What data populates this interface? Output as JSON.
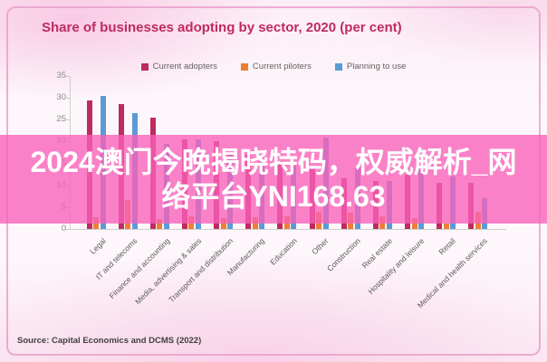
{
  "title": "Share of businesses adopting by sector, 2020 (per cent)",
  "source": "Source: Capital Economics and DCMS (2022)",
  "overlay": {
    "line1": "2024澳门今晚揭晓特码，权威解析_网",
    "line2": "络平台YNI168.63",
    "full_text": "2024澳门今晚揭晓特码，权威解析_网络平台YNI168.63",
    "band_color": "#f960b8",
    "text_color": "#ffffff"
  },
  "colors": {
    "title": "#bf2a5f",
    "adopters": "#bf2a5f",
    "piloters": "#ee7e32",
    "planning": "#5b9bd5",
    "axis": "#cfcfcf",
    "tick_label": "#8a8a8a"
  },
  "chart_data": {
    "type": "bar",
    "title": "Share of businesses adopting by sector, 2020 (per cent)",
    "xlabel": "",
    "ylabel": "",
    "ylim": [
      0,
      35
    ],
    "yticks": [
      0,
      5,
      10,
      15,
      20,
      25,
      30,
      35
    ],
    "grid": false,
    "legend_position": "top",
    "categories": [
      "Legal",
      "IT and telecoms",
      "Finance and accounting",
      "Media, advertising & sales",
      "Transport and distribution",
      "Manufacturing",
      "Education",
      "Other",
      "Construction",
      "Real estate",
      "Hospitality and leisure",
      "Retail",
      "Medical and health services"
    ],
    "series": [
      {
        "name": "Current adopters",
        "color": "#bf2a5f",
        "values": [
          29.5,
          28.5,
          25.5,
          20.5,
          20,
          17,
          15.5,
          14.5,
          11.5,
          11,
          12.5,
          10.5,
          10.5
        ]
      },
      {
        "name": "Current piloters",
        "color": "#ee7e32",
        "values": [
          2.7,
          6.6,
          2.3,
          3,
          2.5,
          2.7,
          3,
          4,
          3.7,
          2.9,
          2.5,
          1.3,
          4
        ]
      },
      {
        "name": "Planning to use",
        "color": "#5b9bd5",
        "values": [
          30.5,
          26.5,
          19.5,
          20.5,
          17.5,
          15.5,
          14.5,
          21,
          14,
          11,
          13.5,
          12,
          7
        ]
      }
    ]
  }
}
